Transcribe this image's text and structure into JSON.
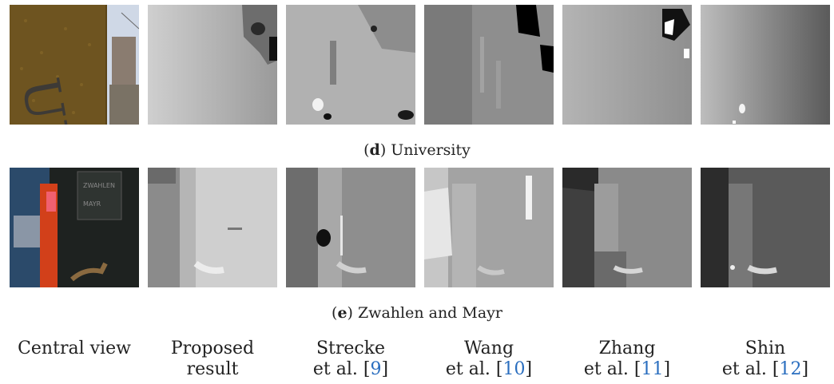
{
  "rows": [
    {
      "caption_letter": "d",
      "caption_text": "University"
    },
    {
      "caption_letter": "e",
      "caption_text": "Zwahlen and Mayr"
    }
  ],
  "columns": [
    {
      "line1": "Central view",
      "line2": "",
      "ref": ""
    },
    {
      "line1": "Proposed",
      "line2": "result",
      "ref": ""
    },
    {
      "line1": "Strecke",
      "line2": "et al. ",
      "ref": "9"
    },
    {
      "line1": "Wang",
      "line2": "et al. ",
      "ref": "10"
    },
    {
      "line1": "Zhang",
      "line2": "et al. ",
      "ref": "11"
    },
    {
      "line1": "Shin",
      "line2": "et al. ",
      "ref": "12"
    }
  ]
}
